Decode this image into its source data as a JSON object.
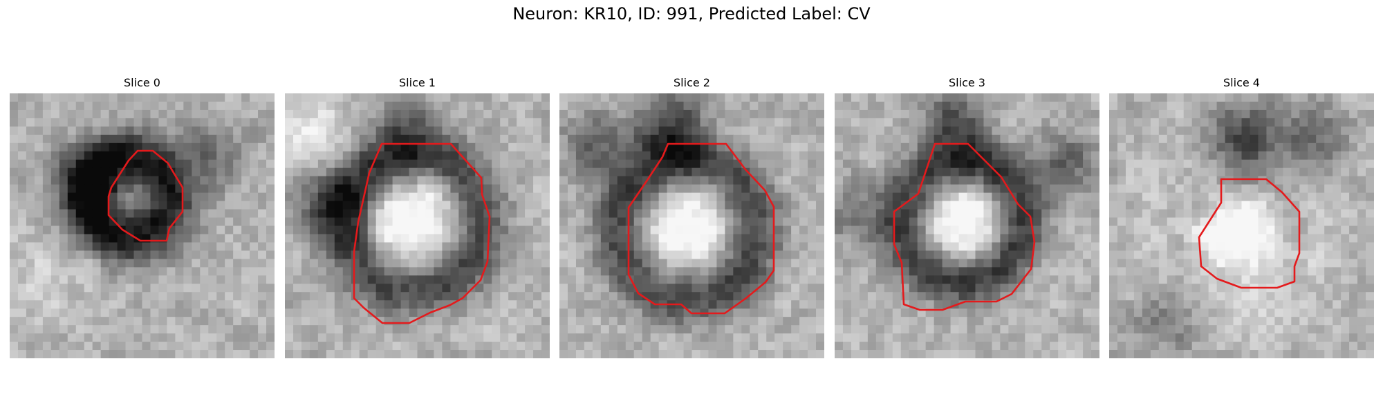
{
  "figure": {
    "title": "Neuron: KR10, ID: 991, Predicted Label: CV"
  },
  "panels": [
    {
      "title": "Slice 0"
    },
    {
      "title": "Slice 1"
    },
    {
      "title": "Slice 2"
    },
    {
      "title": "Slice 3"
    },
    {
      "title": "Slice 4"
    }
  ],
  "colors": {
    "contour": "#e41a1c",
    "background": "#ffffff"
  }
}
